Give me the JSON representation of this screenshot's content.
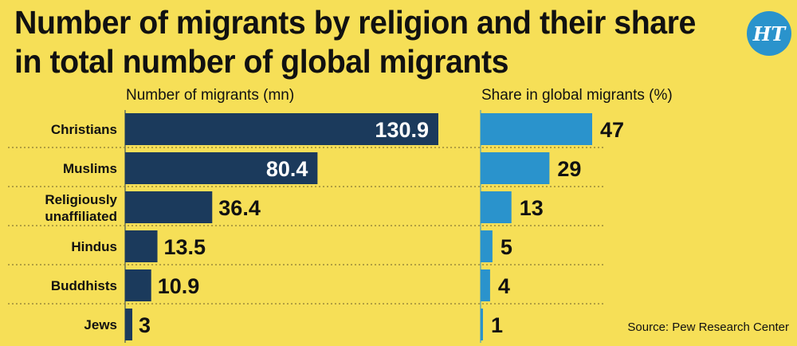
{
  "title": "Number of migrants by religion and their share in total number of global migrants",
  "logo_text": "HT",
  "source": "Source: Pew Research Center",
  "colors": {
    "background": "#F6DF57",
    "left_bar": "#1B3A5C",
    "right_bar": "#2A93CC",
    "divider": "#9A8A3A"
  },
  "chart_data": [
    {
      "type": "bar",
      "orientation": "horizontal",
      "title": "Number of migrants (mn)",
      "categories": [
        "Christians",
        "Muslims",
        "Religiously unaffiliated",
        "Hindus",
        "Buddhists",
        "Jews"
      ],
      "values": [
        130.9,
        80.4,
        36.4,
        13.5,
        10.9,
        3
      ],
      "labels": [
        "130.9",
        "80.4",
        "36.4",
        "13.5",
        "10.9",
        "3"
      ]
    },
    {
      "type": "bar",
      "orientation": "horizontal",
      "title": "Share in global migrants (%)",
      "categories": [
        "Christians",
        "Muslims",
        "Religiously unaffiliated",
        "Hindus",
        "Buddhists",
        "Jews"
      ],
      "values": [
        47,
        29,
        13,
        5,
        4,
        1
      ],
      "labels": [
        "47",
        "29",
        "13",
        "5",
        "4",
        "1"
      ]
    }
  ]
}
